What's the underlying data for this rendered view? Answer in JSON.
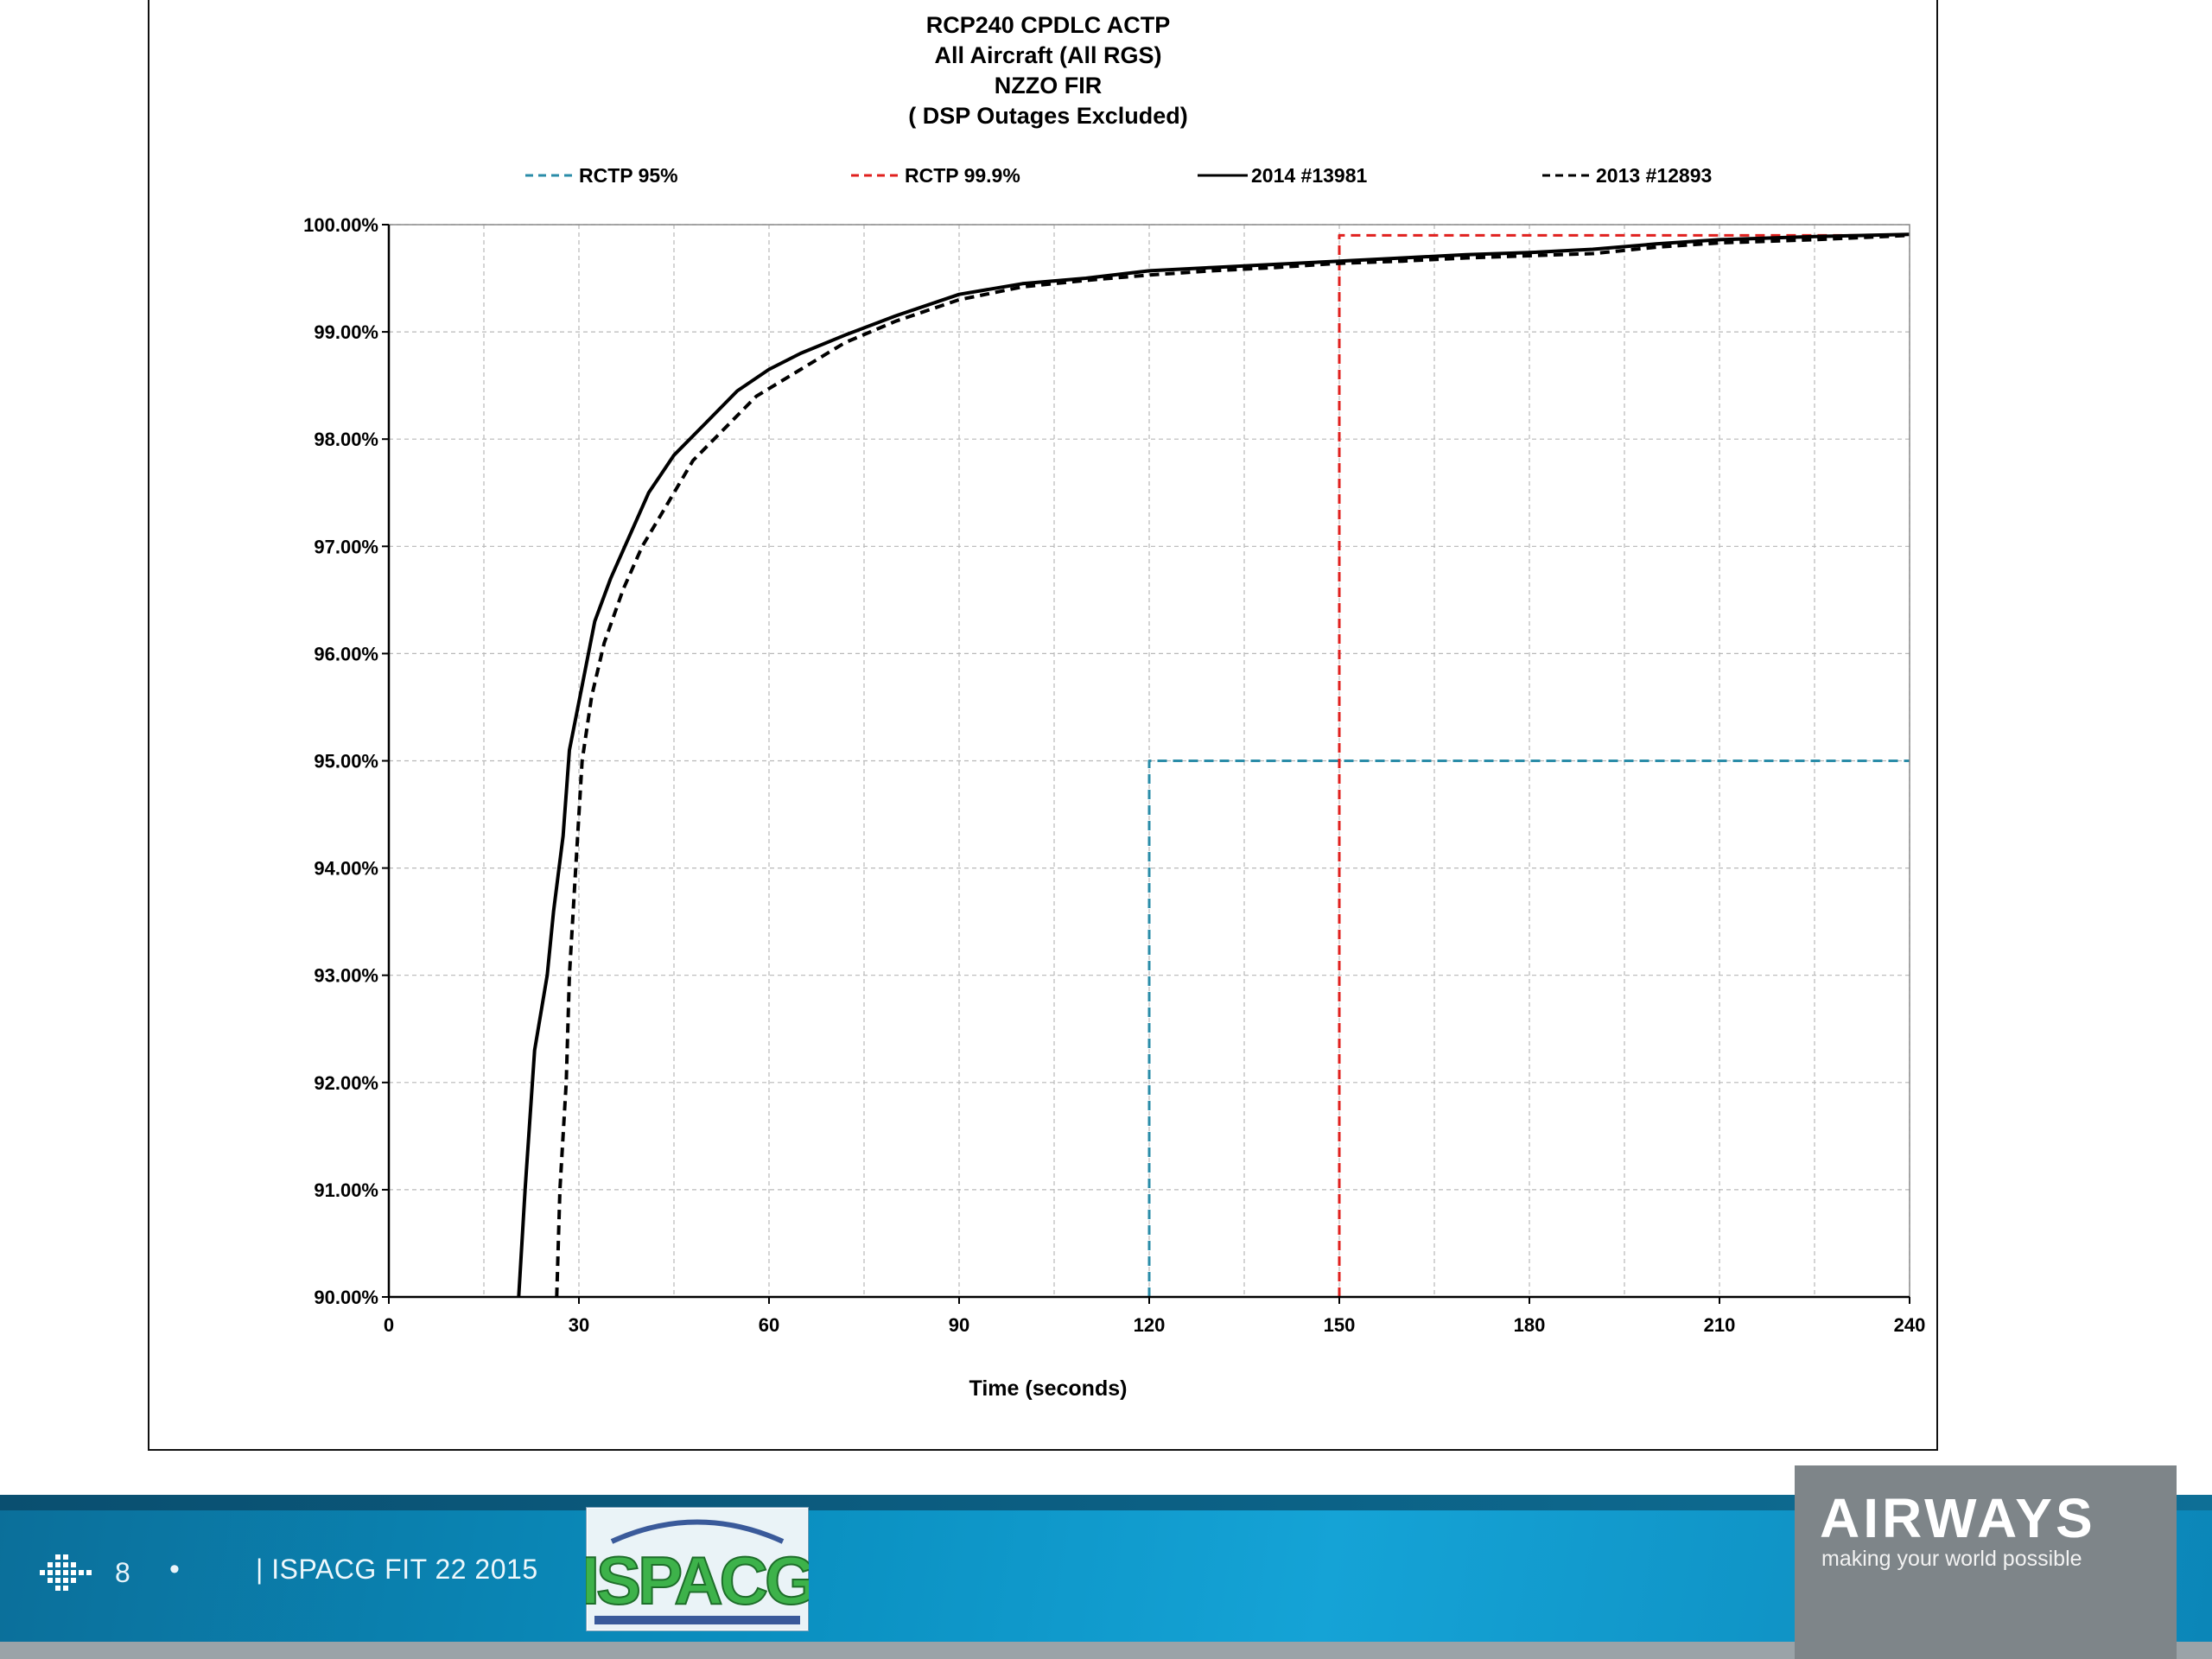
{
  "chart_data": {
    "type": "line",
    "title": [
      "RCP240 CPDLC  ACTP",
      "All Aircraft (All RGS)",
      "NZZO FIR",
      "( DSP Outages Excluded)"
    ],
    "xlabel": "Time (seconds)",
    "ylabel": "",
    "xlim": [
      0,
      240
    ],
    "ylim": [
      90,
      100
    ],
    "x_ticks": [
      0,
      30,
      60,
      90,
      120,
      150,
      180,
      210,
      240
    ],
    "y_ticks": [
      90,
      91,
      92,
      93,
      94,
      95,
      96,
      97,
      98,
      99,
      100
    ],
    "y_tick_labels": [
      "90.00%",
      "91.00%",
      "92.00%",
      "93.00%",
      "94.00%",
      "95.00%",
      "96.00%",
      "97.00%",
      "98.00%",
      "99.00%",
      "100.00%"
    ],
    "grid": true,
    "legend_position": "top",
    "series": [
      {
        "name": "RCTP 95%",
        "color": "#2a8ca8",
        "style": "dashed",
        "points": [
          [
            120,
            90
          ],
          [
            120,
            95
          ],
          [
            240,
            95
          ]
        ]
      },
      {
        "name": "RCTP 99.9%",
        "color": "#e0201e",
        "style": "dashed",
        "points": [
          [
            150,
            90
          ],
          [
            150,
            99.9
          ],
          [
            240,
            99.9
          ]
        ]
      },
      {
        "name": "2014 #13981",
        "color": "#000000",
        "style": "solid",
        "points": [
          [
            20.5,
            90
          ],
          [
            21.5,
            91
          ],
          [
            23,
            92.3
          ],
          [
            25,
            93
          ],
          [
            26,
            93.6
          ],
          [
            27.5,
            94.3
          ],
          [
            28.5,
            95.1
          ],
          [
            30.5,
            95.7
          ],
          [
            32.5,
            96.3
          ],
          [
            35,
            96.7
          ],
          [
            38,
            97.1
          ],
          [
            41,
            97.5
          ],
          [
            45,
            97.85
          ],
          [
            50,
            98.15
          ],
          [
            55,
            98.45
          ],
          [
            60,
            98.65
          ],
          [
            65,
            98.8
          ],
          [
            72,
            98.97
          ],
          [
            80,
            99.15
          ],
          [
            90,
            99.35
          ],
          [
            100,
            99.45
          ],
          [
            110,
            99.5
          ],
          [
            120,
            99.57
          ],
          [
            130,
            99.6
          ],
          [
            140,
            99.63
          ],
          [
            150,
            99.66
          ],
          [
            160,
            99.69
          ],
          [
            170,
            99.72
          ],
          [
            180,
            99.74
          ],
          [
            190,
            99.77
          ],
          [
            200,
            99.82
          ],
          [
            210,
            99.86
          ],
          [
            225,
            99.89
          ],
          [
            240,
            99.91
          ]
        ]
      },
      {
        "name": "2013 #12893",
        "color": "#000000",
        "style": "dashed",
        "points": [
          [
            26.5,
            90
          ],
          [
            27,
            91
          ],
          [
            28,
            92
          ],
          [
            28.5,
            93
          ],
          [
            29.5,
            94
          ],
          [
            30.5,
            95
          ],
          [
            32,
            95.6
          ],
          [
            34,
            96.1
          ],
          [
            37,
            96.6
          ],
          [
            40,
            97.0
          ],
          [
            44,
            97.4
          ],
          [
            48,
            97.8
          ],
          [
            53,
            98.1
          ],
          [
            58,
            98.4
          ],
          [
            65,
            98.65
          ],
          [
            72,
            98.9
          ],
          [
            80,
            99.1
          ],
          [
            90,
            99.3
          ],
          [
            100,
            99.42
          ],
          [
            110,
            99.48
          ],
          [
            120,
            99.53
          ],
          [
            130,
            99.57
          ],
          [
            140,
            99.6
          ],
          [
            150,
            99.64
          ],
          [
            160,
            99.66
          ],
          [
            170,
            99.69
          ],
          [
            180,
            99.71
          ],
          [
            190,
            99.73
          ],
          [
            200,
            99.79
          ],
          [
            210,
            99.83
          ],
          [
            225,
            99.86
          ],
          [
            240,
            99.9
          ]
        ]
      }
    ]
  },
  "footer": {
    "page_number": "8",
    "bullet": "•",
    "event_text": "| ISPACG FIT 22 2015",
    "logo_left_text": "ISPACG",
    "brand_name": "AIRWAYS",
    "brand_tagline": "making your world possible",
    "colors": {
      "footer_blue": "#0a8fc0",
      "brand_grey": "#7e8589"
    }
  }
}
